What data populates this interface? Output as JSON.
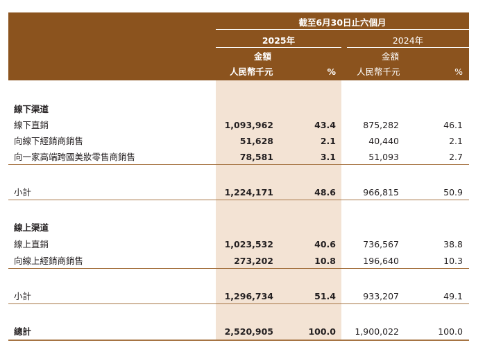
{
  "header": {
    "period": "截至6月30日止六個月",
    "year_2025": "2025年",
    "year_2024": "2024年",
    "amount_2025": "金額",
    "amount_2024": "金額",
    "currency_2025": "人民幣千元",
    "currency_2024": "人民幣千元",
    "pct_2025": "%",
    "pct_2024": "%"
  },
  "offline": {
    "title": "線下渠道",
    "rows": [
      {
        "label": "線下直銷",
        "amt25": "1,093,962",
        "pct25": "43.4",
        "amt24": "875,282",
        "pct24": "46.1"
      },
      {
        "label": "向線下經銷商銷售",
        "amt25": "51,628",
        "pct25": "2.1",
        "amt24": "40,440",
        "pct24": "2.1"
      },
      {
        "label": "向一家高端跨國美妝零售商銷售",
        "amt25": "78,581",
        "pct25": "3.1",
        "amt24": "51,093",
        "pct24": "2.7"
      }
    ],
    "subtotal": {
      "label": "小計",
      "amt25": "1,224,171",
      "pct25": "48.6",
      "amt24": "966,815",
      "pct24": "50.9"
    }
  },
  "online": {
    "title": "線上渠道",
    "rows": [
      {
        "label": "線上直銷",
        "amt25": "1,023,532",
        "pct25": "40.6",
        "amt24": "736,567",
        "pct24": "38.8"
      },
      {
        "label": "向線上經銷商銷售",
        "amt25": "273,202",
        "pct25": "10.8",
        "amt24": "196,640",
        "pct24": "10.3"
      }
    ],
    "subtotal": {
      "label": "小計",
      "amt25": "1,296,734",
      "pct25": "51.4",
      "amt24": "933,207",
      "pct24": "49.1"
    }
  },
  "total": {
    "label": "總計",
    "amt25": "2,520,905",
    "pct25": "100.0",
    "amt24": "1,900,022",
    "pct24": "100.0"
  }
}
